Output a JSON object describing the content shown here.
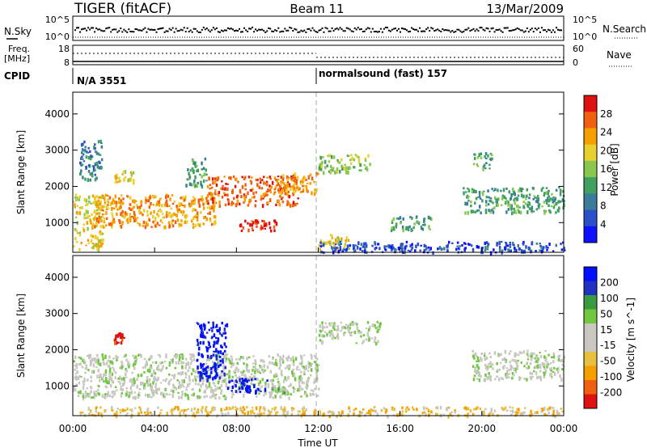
{
  "header": {
    "radar": "TIGER (fitACF)",
    "beam": "Beam 11",
    "date": "13/Mar/2009"
  },
  "strips": {
    "nsky_label": "N.Sky",
    "nsky_ticks": [
      "10^5",
      "10^0"
    ],
    "nsearch_label": "N.Search",
    "nsearch_ticks": [
      "10^5",
      "10^0"
    ],
    "freq_label": "Freq.",
    "freq_unit": "[MHz]",
    "freq_ticks": [
      "18",
      "8"
    ],
    "nave_label": "Nave",
    "nave_ticks": [
      "60",
      "0"
    ],
    "cpid_label": "CPID",
    "cpid_segments": [
      {
        "text": "N/A 3551",
        "start": "00:00"
      },
      {
        "text": "normalsound (fast) 157",
        "start": "12:00"
      }
    ]
  },
  "colors": {
    "power": [
      "#1010ff",
      "#2a4fc8",
      "#3a7d9a",
      "#3fa060",
      "#88c850",
      "#e8d030",
      "#f5a000",
      "#f06010",
      "#e01010"
    ],
    "velocity": [
      "#e01010",
      "#f06010",
      "#f5a000",
      "#e8c040",
      "#c8c8c0",
      "#c8c8c0",
      "#70c840",
      "#3a9a40",
      "#2030c0",
      "#0010ff"
    ]
  },
  "chart_data": [
    {
      "type": "heatmap",
      "id": "power",
      "xlabel": "",
      "ylabel": "Slant Range [km]",
      "xlim": [
        "00:00",
        "24:00"
      ],
      "ylim": [
        180,
        4600
      ],
      "y_ticks": [
        "1000",
        "2000",
        "3000",
        "4000"
      ],
      "colorbar": {
        "label": "Power [dB]",
        "ticks": [
          "4",
          "8",
          "12",
          "16",
          "20",
          "24",
          "28"
        ],
        "range": [
          0,
          30
        ]
      },
      "bands": [
        {
          "t_start": 0.0,
          "t_end": 1.5,
          "range_start": 250,
          "range_end": 1800,
          "level": 5
        },
        {
          "t_start": 0.3,
          "t_end": 1.4,
          "range_start": 2200,
          "range_end": 3300,
          "level": 2
        },
        {
          "t_start": 1.0,
          "t_end": 7.0,
          "range_start": 900,
          "range_end": 1800,
          "level": 6
        },
        {
          "t_start": 2.0,
          "t_end": 3.0,
          "range_start": 2100,
          "range_end": 2500,
          "level": 5
        },
        {
          "t_start": 5.5,
          "t_end": 6.5,
          "range_start": 2000,
          "range_end": 2800,
          "level": 3
        },
        {
          "t_start": 6.5,
          "t_end": 11.0,
          "range_start": 1500,
          "range_end": 2300,
          "level": 7
        },
        {
          "t_start": 8.0,
          "t_end": 10.0,
          "range_start": 800,
          "range_end": 1100,
          "level": 8
        },
        {
          "t_start": 10.0,
          "t_end": 12.0,
          "range_start": 1800,
          "range_end": 2400,
          "level": 6
        },
        {
          "t_start": 12.0,
          "t_end": 14.5,
          "range_start": 2400,
          "range_end": 2900,
          "level": 4
        },
        {
          "t_start": 12.0,
          "t_end": 13.5,
          "range_start": 300,
          "range_end": 700,
          "level": 5
        },
        {
          "t_start": 15.5,
          "t_end": 17.5,
          "range_start": 800,
          "range_end": 1200,
          "level": 3
        },
        {
          "t_start": 19.0,
          "t_end": 24.0,
          "range_start": 1300,
          "range_end": 2000,
          "level": 3
        },
        {
          "t_start": 19.5,
          "t_end": 20.5,
          "range_start": 2500,
          "range_end": 2950,
          "level": 3
        },
        {
          "t_start": 12.0,
          "t_end": 24.0,
          "range_start": 200,
          "range_end": 500,
          "level": 1
        }
      ]
    },
    {
      "type": "heatmap",
      "id": "velocity",
      "xlabel": "Time UT",
      "ylabel": "Slant Range [km]",
      "x_ticks": [
        "00:00",
        "04:00",
        "08:00",
        "12:00",
        "16:00",
        "20:00",
        "00:00"
      ],
      "xlim": [
        "00:00",
        "24:00"
      ],
      "ylim": [
        180,
        4600
      ],
      "y_ticks": [
        "1000",
        "2000",
        "3000",
        "4000"
      ],
      "colorbar": {
        "label": "Velocity [m s^-1]",
        "ticks": [
          "200",
          "100",
          "50",
          "15",
          "-15",
          "-50",
          "-100",
          "-200"
        ],
        "range": [
          -250,
          250
        ]
      },
      "bands": [
        {
          "t_start": 0.0,
          "t_end": 12.0,
          "range_start": 700,
          "range_end": 1900,
          "level": 5
        },
        {
          "t_start": 6.0,
          "t_end": 7.5,
          "range_start": 1200,
          "range_end": 2800,
          "level": 9
        },
        {
          "t_start": 7.5,
          "t_end": 9.5,
          "range_start": 850,
          "range_end": 1250,
          "level": 9
        },
        {
          "t_start": 9.5,
          "t_end": 10.5,
          "range_start": 800,
          "range_end": 1000,
          "level": 6
        },
        {
          "t_start": 12.0,
          "t_end": 15.0,
          "range_start": 2200,
          "range_end": 2800,
          "level": 5
        },
        {
          "t_start": 19.5,
          "t_end": 24.0,
          "range_start": 1200,
          "range_end": 2000,
          "level": 5
        },
        {
          "t_start": 0.0,
          "t_end": 24.0,
          "range_start": 200,
          "range_end": 450,
          "level": 3
        },
        {
          "t_start": 2.0,
          "t_end": 2.5,
          "range_start": 2200,
          "range_end": 2500,
          "level": 0
        }
      ]
    }
  ]
}
